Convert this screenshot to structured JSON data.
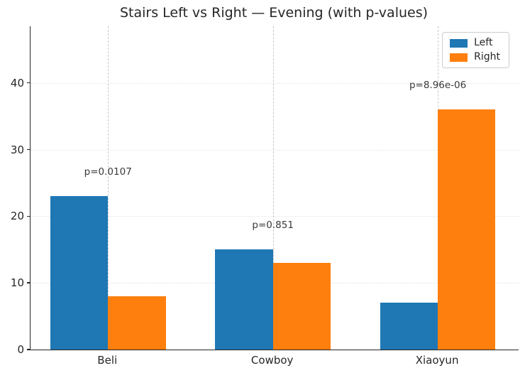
{
  "chart_data": {
    "type": "bar",
    "title": "Stairs Left vs Right — Evening (with p-values)",
    "categories": [
      "Beli",
      "Cowboy",
      "Xiaoyun"
    ],
    "series": [
      {
        "name": "Left",
        "color": "#1f77b4",
        "values": [
          23,
          15,
          7
        ]
      },
      {
        "name": "Right",
        "color": "#ff7f0e",
        "values": [
          8,
          13,
          36
        ]
      }
    ],
    "p_value_labels": [
      "p=0.0107",
      "p=0.851",
      "p=8.96e-06"
    ],
    "yticks": [
      0,
      10,
      20,
      30,
      40
    ],
    "ylim": [
      0,
      48.5
    ],
    "xlabel": "",
    "ylabel": "",
    "grid": {
      "vertical": "dashed line at each category center",
      "horizontal": "dotted line at each y tick"
    },
    "legend_position": "upper right",
    "colors": {
      "left_series": "#1f77b4",
      "right_series": "#ff7f0e",
      "spine": "#262626",
      "tick_text": "#262626",
      "annotation_text": "#3a3a3a",
      "vertical_grid": "#c9c9c9",
      "horizontal_grid": "#e2e2e2",
      "legend_border": "#cccccc",
      "background": "#ffffff"
    }
  }
}
